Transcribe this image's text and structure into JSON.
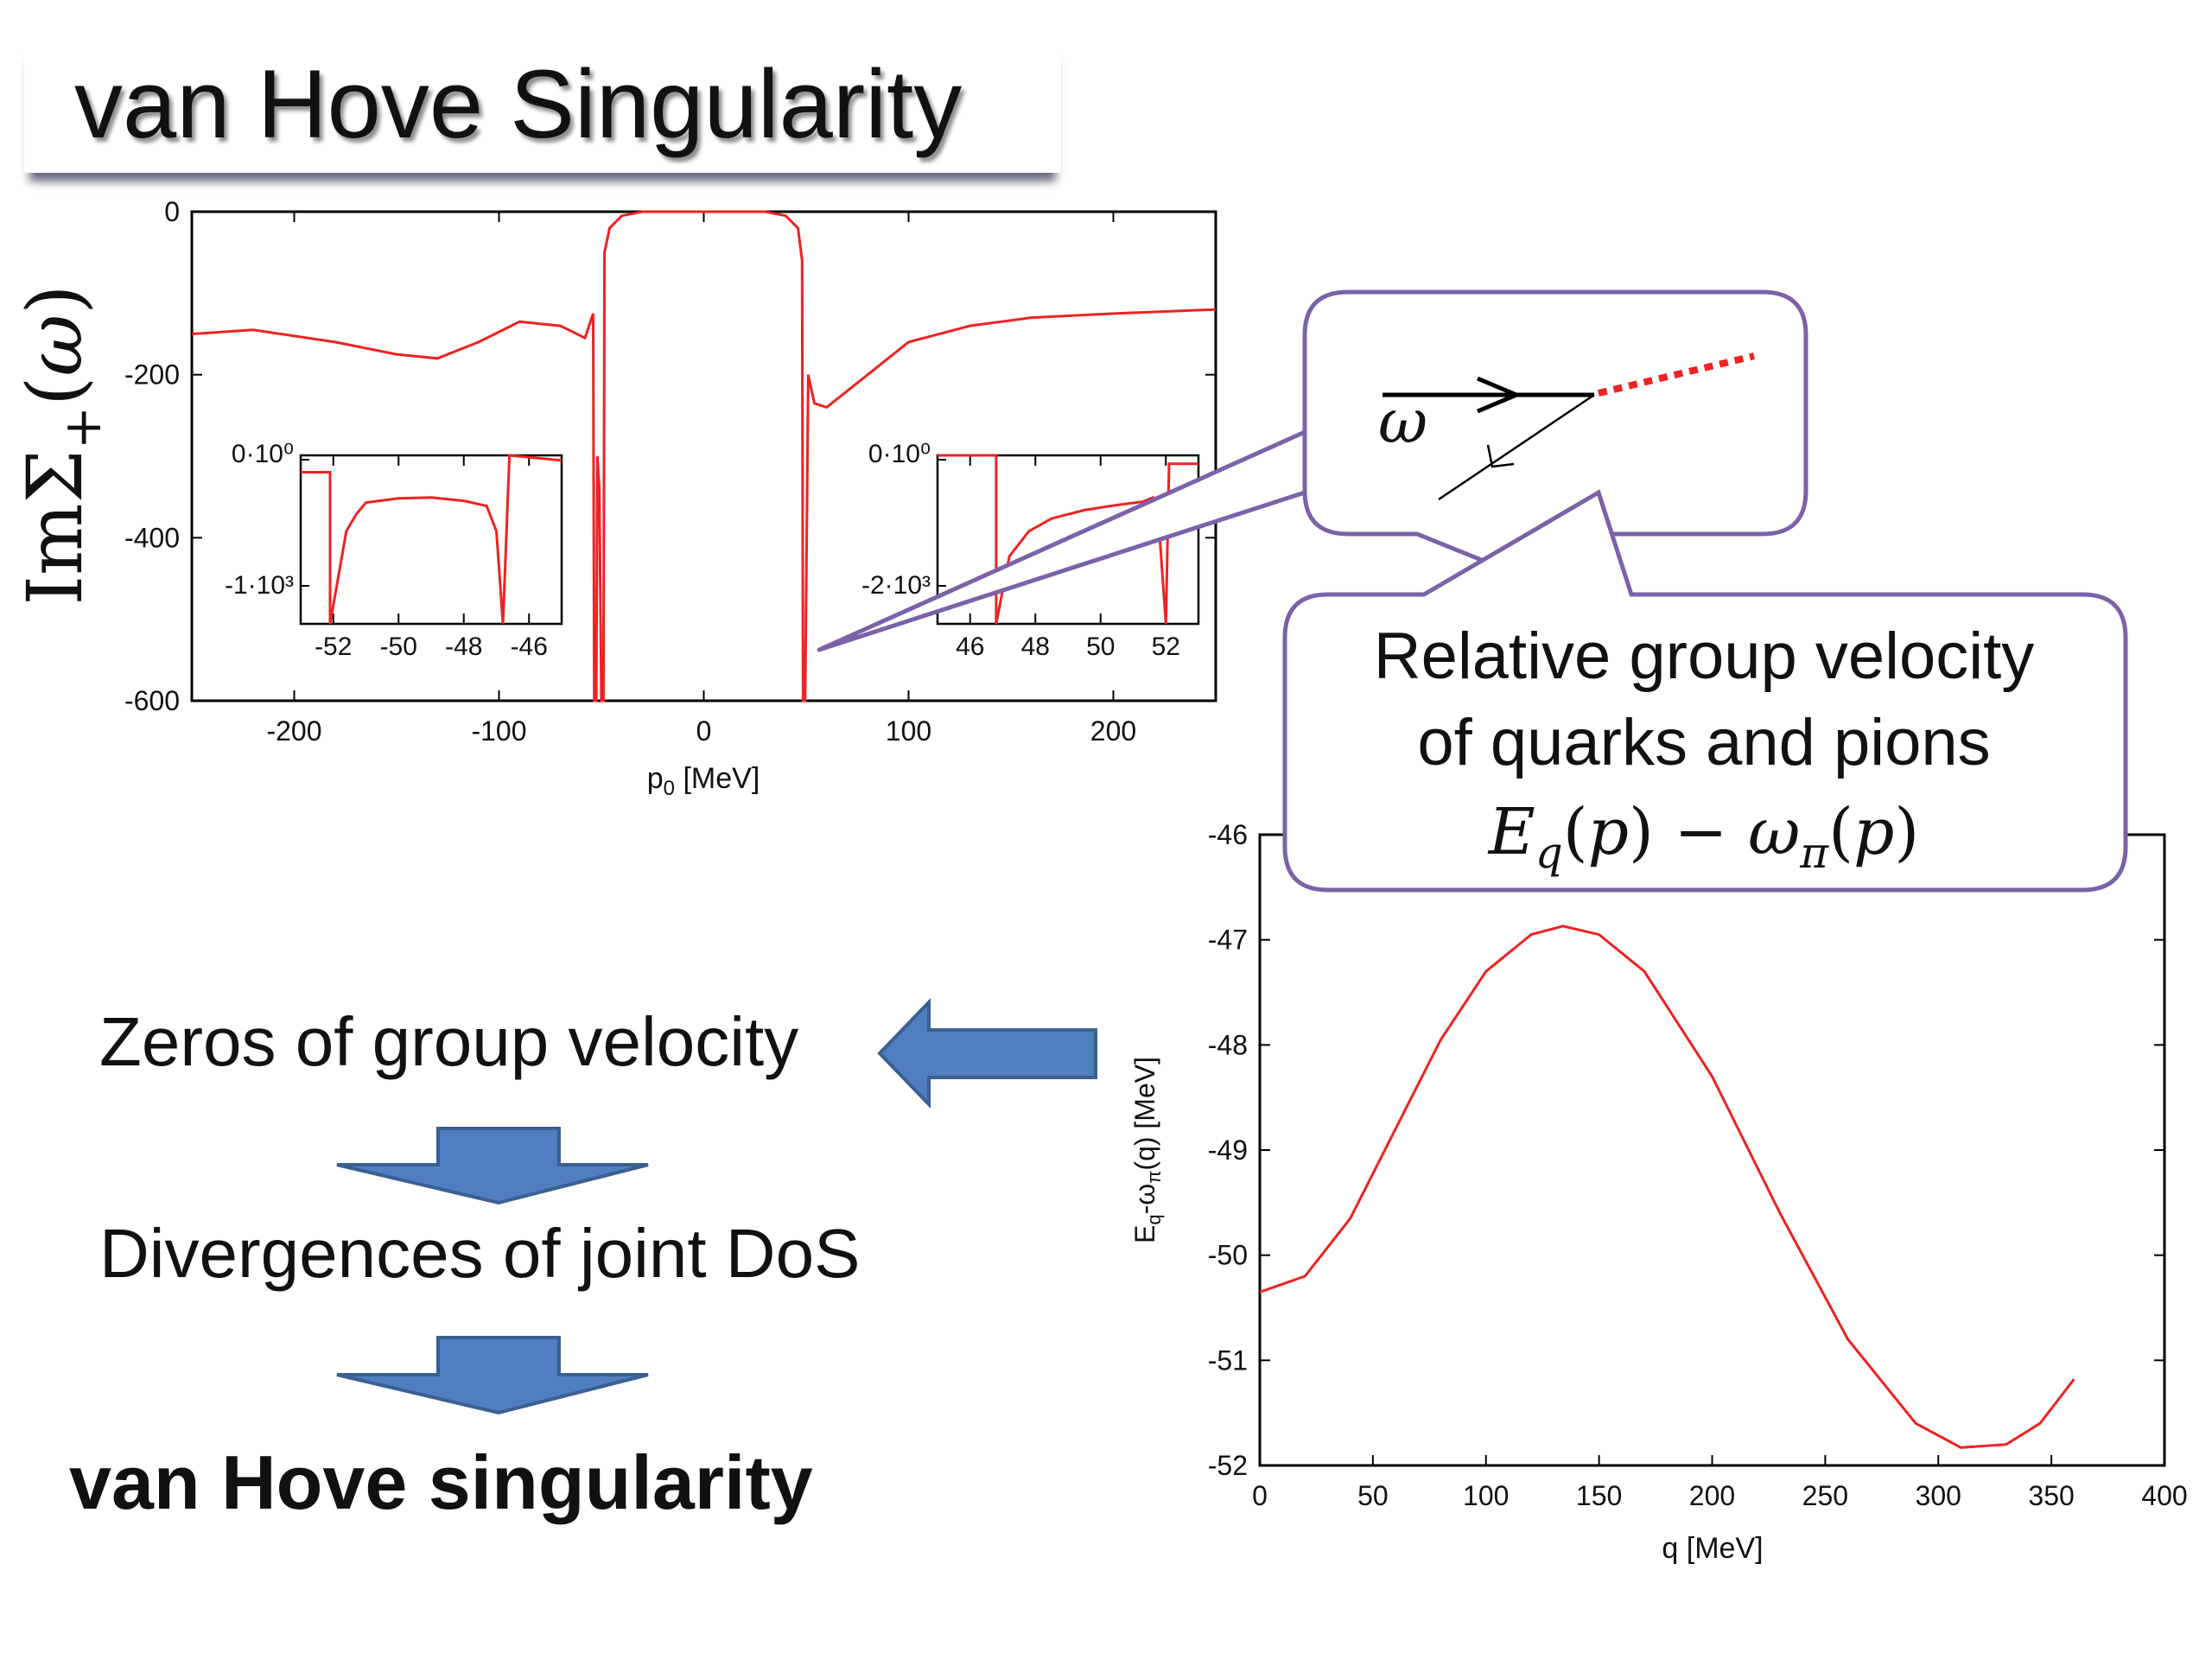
{
  "slide": {
    "title": "van Hove Singularity",
    "steps": [
      "Zeros of group velocity",
      "Divergences of joint DoS",
      "van Hove singularity"
    ]
  },
  "callouts": {
    "diagram_label": "ω",
    "text_line1": "Relative group velocity",
    "text_line2": "of quarks and pions",
    "formula": "E_q(p) − ω_π(p)"
  },
  "colors": {
    "curve": "#ee2222",
    "callout_border": "#7a62a8",
    "arrow_fill": "#4f7fbf",
    "arrow_stroke": "#3a5f92"
  },
  "chart_data": [
    {
      "type": "line",
      "title": "",
      "xlabel": "p0 [MeV]",
      "ylabel": "ImΣ+(ω)",
      "xlim": [
        -250,
        250
      ],
      "ylim": [
        -600,
        0
      ],
      "xticks": [
        -200,
        -100,
        0,
        100,
        200
      ],
      "yticks": [
        -600,
        -400,
        -200,
        0
      ],
      "series": [
        {
          "x": [
            -250,
            -220,
            -180,
            -150,
            -130,
            -110,
            -90,
            -70,
            -58,
            -54,
            -52,
            -51,
            -50,
            -49,
            -48.5,
            -48,
            -46,
            -40,
            -30,
            -10,
            10,
            30,
            40,
            46,
            48,
            -0.0,
            51,
            52,
            54,
            60,
            80,
            100,
            130,
            160,
            200,
            250
          ],
          "y": [
            -150,
            -145,
            -160,
            -175,
            -180,
            -160,
            -135,
            -140,
            -155,
            -135,
            -600,
            0,
            0,
            -600,
            -600,
            -50,
            -20,
            -5,
            0,
            0,
            0,
            0,
            -5,
            -20,
            -60,
            -600,
            -600,
            -200,
            -230,
            -240,
            -200,
            -160,
            -140,
            -130,
            -125,
            -120
          ]
        }
      ]
    },
    {
      "type": "line",
      "title": "",
      "xlabel": "",
      "ylabel": "",
      "xlim": [
        -53,
        -45
      ],
      "ylim": [
        -1000,
        0
      ],
      "xticks": [
        -52,
        -50,
        -48,
        -46
      ],
      "ytick_labels": [
        "0·10⁰",
        "-1·10³"
      ],
      "series": [
        {
          "x": [
            -53,
            -52.1,
            -52.1,
            -51.6,
            -51.3,
            -51,
            -50,
            -49,
            -48,
            -47.3,
            -47,
            -46.8,
            -46.6,
            -45
          ],
          "y": [
            -100,
            -100,
            -1000,
            -450,
            -350,
            -280,
            -255,
            -250,
            -270,
            -300,
            -450,
            -1000,
            0,
            -30
          ]
        }
      ]
    },
    {
      "type": "line",
      "title": "",
      "xlabel": "",
      "ylabel": "",
      "xlim": [
        45,
        53
      ],
      "ylim": [
        -2000,
        0
      ],
      "xticks": [
        46,
        48,
        50,
        52
      ],
      "ytick_labels": [
        "0·10⁰",
        "-2·10³"
      ],
      "series": [
        {
          "x": [
            45,
            46.8,
            46.8,
            47.2,
            47.8,
            48.5,
            49.5,
            50.5,
            51.3,
            51.6,
            51.8,
            52.0,
            52.1,
            53
          ],
          "y": [
            0,
            0,
            -2000,
            -1200,
            -900,
            -750,
            -650,
            -590,
            -550,
            -500,
            -900,
            -2000,
            -100,
            -100
          ]
        }
      ]
    },
    {
      "type": "line",
      "title": "",
      "xlabel": "q [MeV]",
      "ylabel": "Eq-ωπ(q) [MeV]",
      "xlim": [
        0,
        400
      ],
      "ylim": [
        -52,
        -46
      ],
      "xticks": [
        0,
        50,
        100,
        150,
        200,
        250,
        300,
        350,
        400
      ],
      "yticks": [
        -52,
        -51,
        -50,
        -49,
        -48,
        -47,
        -46
      ],
      "series": [
        {
          "x": [
            0,
            20,
            40,
            60,
            80,
            100,
            120,
            134,
            150,
            170,
            200,
            230,
            260,
            290,
            310,
            330,
            345,
            360
          ],
          "y": [
            -50.35,
            -50.2,
            -49.65,
            -48.8,
            -47.95,
            -47.3,
            -46.95,
            -46.87,
            -46.95,
            -47.3,
            -48.3,
            -49.6,
            -50.8,
            -51.6,
            -51.83,
            -51.8,
            -51.6,
            -51.18
          ]
        }
      ]
    }
  ]
}
